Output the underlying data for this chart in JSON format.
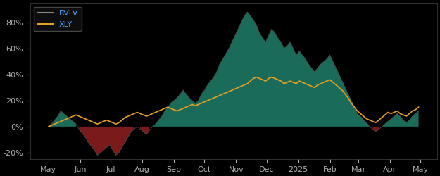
{
  "background_color": "#000000",
  "plot_bg_color": "#000000",
  "teal_color": "#1a6b5a",
  "red_color": "#7b1a1a",
  "xly_color": "#e8a020",
  "rvlv_line_color": "#4a4a4a",
  "legend_text_color": "#4da6ff",
  "tick_color": "#b0b0b0",
  "ylim": [
    -25,
    95
  ],
  "yticks": [
    -20,
    0,
    20,
    40,
    60,
    80
  ],
  "title": "",
  "legend_rvlv": "RVLV",
  "legend_xly": "XLY",
  "rvlv_data": [
    0.0,
    2.0,
    5.0,
    8.0,
    12.0,
    10.0,
    8.0,
    6.0,
    4.0,
    2.0,
    -2.0,
    -5.0,
    -8.0,
    -12.0,
    -15.0,
    -18.0,
    -22.0,
    -20.0,
    -18.0,
    -16.0,
    -14.0,
    -18.0,
    -22.0,
    -20.0,
    -16.0,
    -12.0,
    -8.0,
    -4.0,
    -2.0,
    0.0,
    -2.0,
    -4.0,
    -6.0,
    -3.0,
    0.0,
    2.0,
    5.0,
    8.0,
    12.0,
    15.0,
    18.0,
    20.0,
    22.0,
    25.0,
    28.0,
    25.0,
    22.0,
    20.0,
    18.0,
    20.0,
    25.0,
    28.0,
    32.0,
    35.0,
    38.0,
    42.0,
    48.0,
    52.0,
    56.0,
    60.0,
    65.0,
    70.0,
    75.0,
    80.0,
    85.0,
    88.0,
    85.0,
    82.0,
    78.0,
    72.0,
    68.0,
    65.0,
    70.0,
    75.0,
    72.0,
    68.0,
    65.0,
    60.0,
    62.0,
    65.0,
    60.0,
    55.0,
    58.0,
    55.0,
    52.0,
    48.0,
    45.0,
    42.0,
    45.0,
    48.0,
    50.0,
    52.0,
    55.0,
    50.0,
    45.0,
    40.0,
    35.0,
    30.0,
    25.0,
    20.0,
    15.0,
    10.0,
    8.0,
    5.0,
    3.0,
    0.0,
    -2.0,
    -4.0,
    -2.0,
    0.0,
    2.0,
    4.0,
    6.0,
    8.0,
    10.0,
    8.0,
    5.0,
    3.0,
    5.0,
    8.0,
    10.0,
    12.0
  ],
  "xly_data": [
    0.0,
    1.0,
    2.0,
    3.0,
    4.0,
    5.0,
    6.0,
    7.0,
    8.0,
    9.0,
    8.0,
    7.0,
    6.0,
    5.0,
    4.0,
    3.0,
    2.0,
    3.0,
    4.0,
    5.0,
    4.0,
    3.0,
    2.0,
    3.0,
    5.0,
    7.0,
    8.0,
    9.0,
    10.0,
    11.0,
    10.0,
    9.0,
    8.0,
    9.0,
    10.0,
    11.0,
    12.0,
    13.0,
    14.0,
    15.0,
    14.0,
    13.0,
    12.0,
    13.0,
    14.0,
    15.0,
    16.0,
    17.0,
    16.0,
    17.0,
    18.0,
    19.0,
    20.0,
    21.0,
    22.0,
    23.0,
    24.0,
    25.0,
    26.0,
    27.0,
    28.0,
    29.0,
    30.0,
    31.0,
    32.0,
    33.0,
    35.0,
    37.0,
    38.0,
    37.0,
    36.0,
    35.0,
    37.0,
    38.0,
    37.0,
    36.0,
    35.0,
    33.0,
    34.0,
    35.0,
    34.0,
    33.0,
    35.0,
    34.0,
    33.0,
    32.0,
    31.0,
    30.0,
    32.0,
    33.0,
    34.0,
    35.0,
    36.0,
    34.0,
    32.0,
    30.0,
    28.0,
    25.0,
    22.0,
    18.0,
    15.0,
    12.0,
    10.0,
    8.0,
    6.0,
    5.0,
    4.0,
    3.0,
    5.0,
    7.0,
    9.0,
    11.0,
    10.0,
    11.0,
    12.0,
    10.0,
    9.0,
    8.0,
    10.0,
    12.0,
    13.0,
    15.0
  ]
}
